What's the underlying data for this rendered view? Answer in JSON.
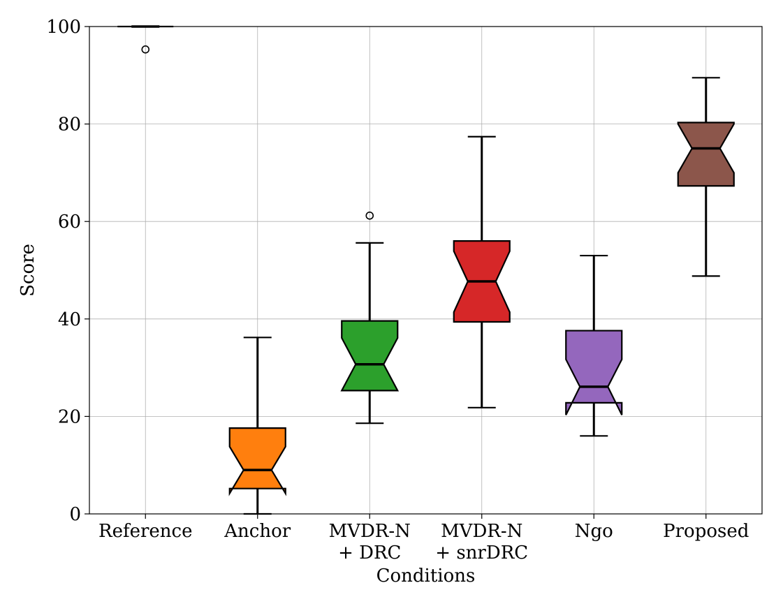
{
  "chart_data": {
    "type": "box",
    "xlabel": "Conditions",
    "ylabel": "Score",
    "ylim": [
      0,
      100
    ],
    "yticks": [
      "0",
      "20",
      "40",
      "60",
      "80",
      "100"
    ],
    "grid": true,
    "notched": true,
    "categories": [
      {
        "lines": [
          "Reference"
        ]
      },
      {
        "lines": [
          "Anchor"
        ]
      },
      {
        "lines": [
          "MVDR-N",
          "+ DRC"
        ]
      },
      {
        "lines": [
          "MVDR-N",
          "+ snrDRC"
        ]
      },
      {
        "lines": [
          "Ngo"
        ]
      },
      {
        "lines": [
          "Proposed"
        ]
      }
    ],
    "boxes": [
      {
        "q1": 100,
        "median": 100,
        "q3": 100,
        "whisker_low": 100,
        "whisker_high": 100,
        "notch_low": 100,
        "notch_high": 100,
        "outliers": [
          95.3
        ],
        "color": "#1f77b4"
      },
      {
        "q1": 5.2,
        "median": 9.0,
        "q3": 17.6,
        "whisker_low": 0,
        "whisker_high": 36.2,
        "notch_low": 4.2,
        "notch_high": 13.8,
        "outliers": [],
        "color": "#ff7f0e"
      },
      {
        "q1": 25.3,
        "median": 30.7,
        "q3": 39.6,
        "whisker_low": 18.6,
        "whisker_high": 55.6,
        "notch_low": 25.3,
        "notch_high": 36.1,
        "outliers": [
          61.2
        ],
        "color": "#2ca02c"
      },
      {
        "q1": 39.4,
        "median": 47.7,
        "q3": 56.0,
        "whisker_low": 21.8,
        "whisker_high": 77.4,
        "notch_low": 41.4,
        "notch_high": 53.9,
        "outliers": [],
        "color": "#d62728"
      },
      {
        "q1": 22.8,
        "median": 26.1,
        "q3": 37.6,
        "whisker_low": 16.0,
        "whisker_high": 53.0,
        "notch_low": 20.3,
        "notch_high": 31.7,
        "outliers": [],
        "color": "#9467bd"
      },
      {
        "q1": 67.3,
        "median": 75.0,
        "q3": 80.3,
        "whisker_low": 48.8,
        "whisker_high": 89.5,
        "notch_low": 70.0,
        "notch_high": 80.0,
        "outliers": [],
        "color": "#8c564b"
      }
    ]
  }
}
